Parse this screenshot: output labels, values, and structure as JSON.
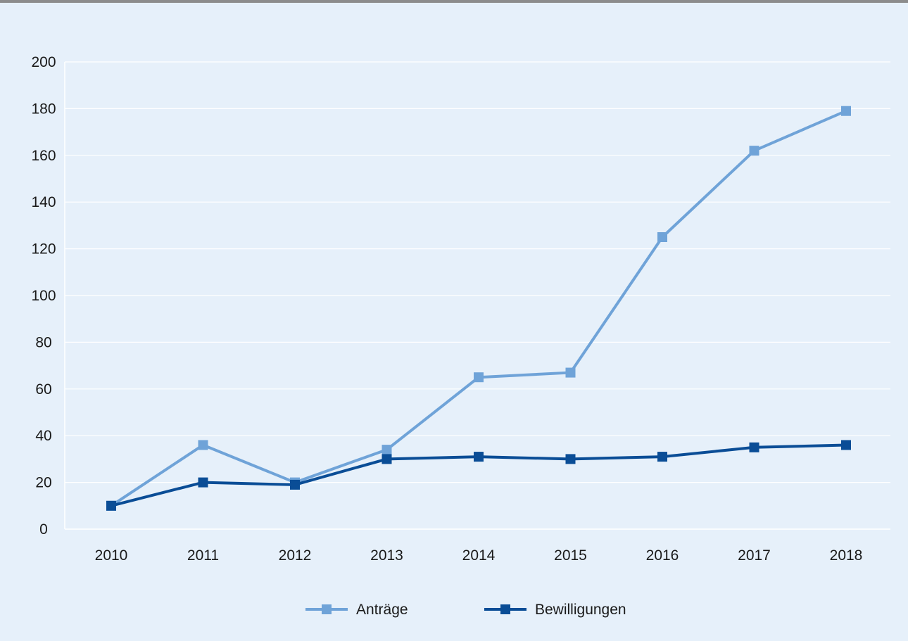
{
  "chart_data": {
    "type": "line",
    "title": "",
    "xlabel": "",
    "ylabel": "",
    "x": [
      "2010",
      "2011",
      "2012",
      "2013",
      "2014",
      "2015",
      "2016",
      "2017",
      "2018"
    ],
    "ylim": [
      0,
      200
    ],
    "yticks": [
      0,
      20,
      40,
      60,
      80,
      100,
      120,
      140,
      160,
      180,
      200
    ],
    "grid": "horizontal",
    "legend_position": "bottom",
    "background_color": "#e6f0fa",
    "series": [
      {
        "name": "Anträge",
        "color": "#6fa3d8",
        "marker": "square",
        "values": [
          10,
          36,
          20,
          34,
          65,
          67,
          125,
          162,
          179
        ]
      },
      {
        "name": "Bewilligungen",
        "color": "#0a4d96",
        "marker": "square",
        "values": [
          10,
          20,
          19,
          30,
          31,
          30,
          31,
          35,
          36
        ]
      }
    ]
  }
}
